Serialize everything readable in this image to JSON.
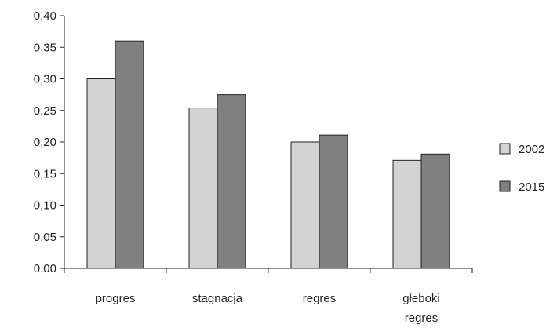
{
  "chart_data": {
    "type": "bar",
    "categories": [
      [
        "progres"
      ],
      [
        "stagnacja"
      ],
      [
        "regres"
      ],
      [
        "głeboki",
        "regres"
      ]
    ],
    "series": [
      {
        "name": "2002",
        "values": [
          0.3,
          0.254,
          0.2,
          0.171
        ],
        "color": "#d3d3d3"
      },
      {
        "name": "2015",
        "values": [
          0.36,
          0.275,
          0.211,
          0.181
        ],
        "color": "#808080"
      }
    ],
    "ylim": [
      0,
      0.4
    ],
    "yticks": [
      "0,00",
      "0,05",
      "0,10",
      "0,15",
      "0,20",
      "0,25",
      "0,30",
      "0,35",
      "0,40"
    ],
    "legend_position": "right",
    "grid": false,
    "title": "",
    "xlabel": "",
    "ylabel": ""
  }
}
